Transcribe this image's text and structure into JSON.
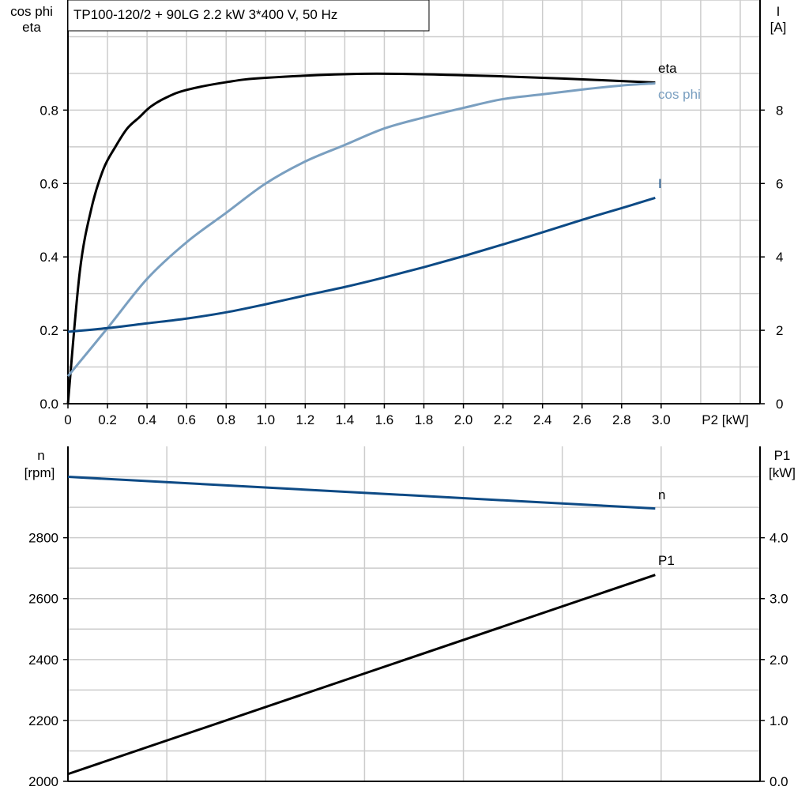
{
  "title": "TP100-120/2 + 90LG   2.2 kW   3*400 V, 50 Hz",
  "colors": {
    "eta": "#000000",
    "cos_phi": "#7a9fc0",
    "I": "#0d4a85",
    "n": "#0d4a85",
    "P1": "#000000",
    "grid": "#cccccc"
  },
  "chart_data": [
    {
      "type": "line",
      "title": "TP100-120/2 + 90LG   2.2 kW   3*400 V, 50 Hz",
      "xlabel": "P2 [kW]",
      "ylabel_left": [
        "cos phi",
        "eta"
      ],
      "ylabel_right": [
        "I",
        "[A]"
      ],
      "xlim": [
        0,
        3.5
      ],
      "ylim_left": [
        0,
        1.1
      ],
      "ylim_right": [
        0,
        11
      ],
      "grid": true,
      "x_ticks": [
        "0",
        "0.2",
        "0.4",
        "0.6",
        "0.8",
        "1.0",
        "1.2",
        "1.4",
        "1.6",
        "1.8",
        "2.0",
        "2.2",
        "2.4",
        "2.6",
        "2.8",
        "3.0"
      ],
      "y_left_ticks": [
        "0.0",
        "0.2",
        "0.4",
        "0.6",
        "0.8"
      ],
      "y_right_ticks": [
        "0",
        "2",
        "4",
        "6",
        "8"
      ],
      "series": [
        {
          "name": "eta",
          "axis": "left",
          "x": [
            0,
            0.06,
            0.12,
            0.18,
            0.24,
            0.3,
            0.36,
            0.42,
            0.5,
            0.6,
            0.8,
            1.0,
            1.5,
            2.0,
            2.5,
            2.97
          ],
          "y": [
            0,
            0.36,
            0.535,
            0.64,
            0.7,
            0.75,
            0.78,
            0.81,
            0.835,
            0.855,
            0.876,
            0.888,
            0.899,
            0.895,
            0.886,
            0.875
          ]
        },
        {
          "name": "cos phi",
          "axis": "left",
          "x": [
            0,
            0.2,
            0.4,
            0.6,
            0.8,
            1.0,
            1.2,
            1.4,
            1.6,
            1.8,
            2.0,
            2.2,
            2.4,
            2.6,
            2.8,
            2.97
          ],
          "y": [
            0.075,
            0.206,
            0.34,
            0.44,
            0.52,
            0.6,
            0.66,
            0.705,
            0.75,
            0.78,
            0.806,
            0.83,
            0.843,
            0.856,
            0.867,
            0.873
          ]
        },
        {
          "name": "I",
          "axis": "right",
          "x": [
            0,
            0.2,
            0.4,
            0.6,
            0.8,
            1.0,
            1.2,
            1.4,
            1.6,
            1.8,
            2.0,
            2.2,
            2.4,
            2.6,
            2.8,
            2.97
          ],
          "y": [
            1.96,
            2.06,
            2.19,
            2.32,
            2.49,
            2.71,
            2.95,
            3.18,
            3.44,
            3.72,
            4.02,
            4.34,
            4.67,
            5.01,
            5.33,
            5.61
          ]
        }
      ]
    },
    {
      "type": "line",
      "ylabel_left": [
        "n",
        "[rpm]"
      ],
      "ylabel_right": [
        "P1",
        "[kW]"
      ],
      "xlim": [
        0,
        3.5
      ],
      "ylim_left": [
        2000,
        3100
      ],
      "ylim_right": [
        0,
        5.5
      ],
      "grid": true,
      "y_left_ticks": [
        "2000",
        "2200",
        "2400",
        "2600",
        "2800"
      ],
      "y_right_ticks": [
        "0.0",
        "1.0",
        "2.0",
        "3.0",
        "4.0"
      ],
      "series": [
        {
          "name": "n",
          "axis": "left",
          "x": [
            0,
            2.97
          ],
          "y": [
            3000,
            2896
          ]
        },
        {
          "name": "P1",
          "axis": "right",
          "x": [
            0,
            2.97
          ],
          "y": [
            0.12,
            3.39
          ]
        }
      ]
    }
  ]
}
